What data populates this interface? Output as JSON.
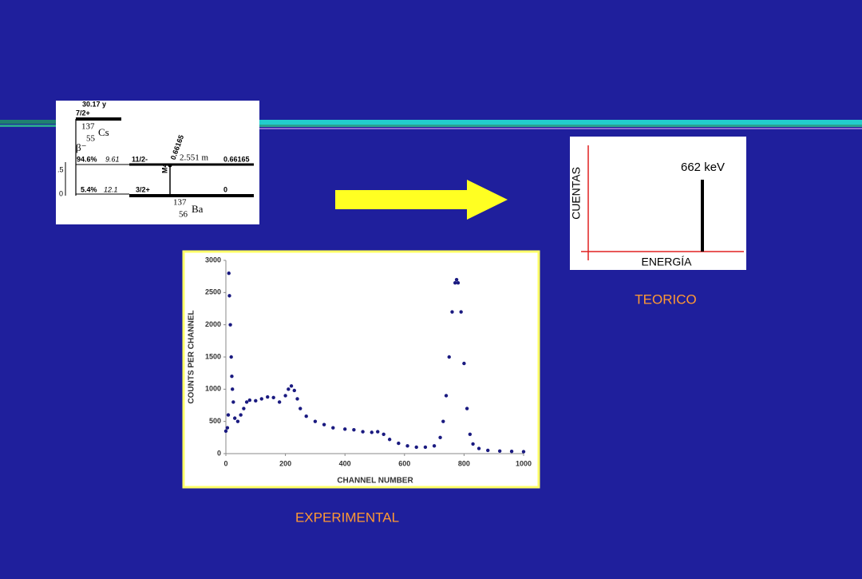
{
  "chart_data": [
    {
      "type": "scatter",
      "xlabel": "CHANNEL NUMBER",
      "ylabel": "COUNTS PER CHANNEL",
      "caption": "EXPERIMENTAL",
      "color": "#1a1a80",
      "xlim": [
        0,
        1000
      ],
      "xticks": [
        0,
        200,
        400,
        600,
        800,
        1000
      ],
      "ylim": [
        0,
        3000
      ],
      "yticks": [
        0,
        500,
        1000,
        1500,
        2000,
        2500,
        3000
      ],
      "x": [
        0,
        5,
        8,
        10,
        12,
        15,
        18,
        20,
        22,
        25,
        30,
        40,
        50,
        60,
        70,
        80,
        100,
        120,
        140,
        160,
        180,
        200,
        210,
        220,
        230,
        240,
        250,
        270,
        300,
        330,
        360,
        400,
        430,
        460,
        490,
        510,
        530,
        550,
        580,
        610,
        640,
        670,
        700,
        720,
        730,
        740,
        750,
        760,
        770,
        775,
        780,
        790,
        800,
        810,
        820,
        830,
        850,
        880,
        920,
        960,
        1000
      ],
      "y": [
        350,
        400,
        600,
        2800,
        2450,
        2000,
        1500,
        1200,
        1000,
        800,
        550,
        500,
        600,
        700,
        800,
        830,
        820,
        850,
        880,
        870,
        800,
        900,
        1000,
        1050,
        980,
        850,
        700,
        580,
        500,
        450,
        400,
        380,
        370,
        340,
        330,
        340,
        300,
        220,
        160,
        120,
        100,
        100,
        120,
        250,
        500,
        900,
        1500,
        2200,
        2650,
        2700,
        2650,
        2200,
        1400,
        700,
        300,
        150,
        80,
        50,
        40,
        35,
        30
      ]
    }
  ],
  "theoretical": {
    "y_label": "CUENTAS",
    "x_label": "ENERGÍA",
    "annotation": "662 keV",
    "caption": "TEORICO"
  },
  "decay_scheme": {
    "parent_half_life": "30.17 y",
    "parent_spin": "7/2+",
    "parent_mass": "137",
    "parent_z": "55",
    "parent_symbol": "Cs",
    "decay": "β⁻",
    "branches": [
      {
        "percent": "94.6%",
        "logft": "9.61",
        "spin": "11/2-",
        "half_life": "2.551 m",
        "energy": "0.66165"
      },
      {
        "percent": "5.4%",
        "logft": "12.1",
        "spin": "3/2+",
        "energy": "0"
      }
    ],
    "gamma_energy": "0.66165",
    "gamma_multipolarity": "M4",
    "daughter_mass": "137",
    "daughter_z": "56",
    "daughter_symbol": "Ba",
    "axis_ticks": [
      ".5",
      "0"
    ]
  }
}
